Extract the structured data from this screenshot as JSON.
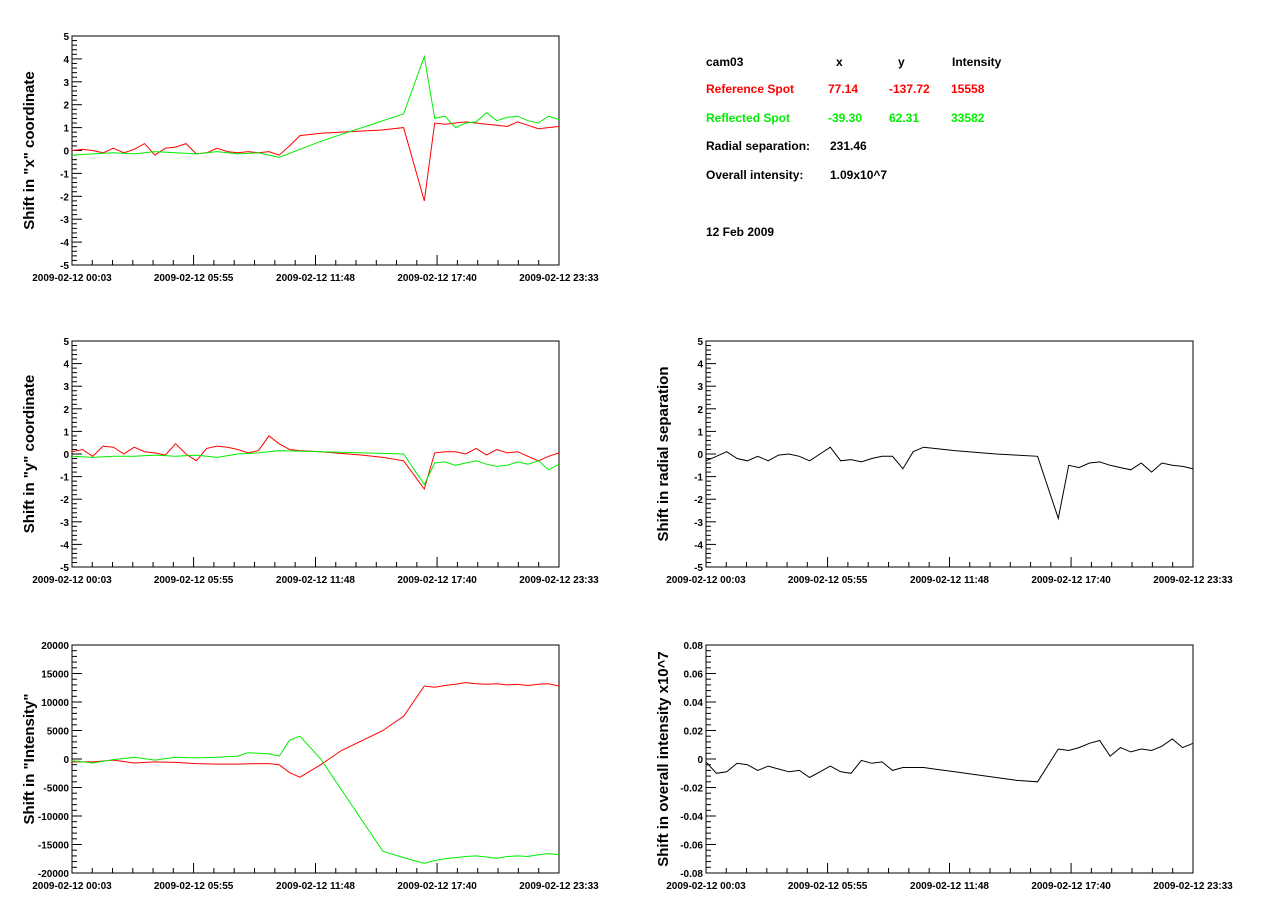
{
  "info": {
    "camera": "cam03",
    "col_x": "x",
    "col_y": "y",
    "col_intensity": "Intensity",
    "reference": {
      "label": "Reference Spot",
      "x": "77.14",
      "y": "-137.72",
      "intensity": "15558",
      "color": "#ff0000"
    },
    "reflected": {
      "label": "Reflected Spot",
      "x": "-39.30",
      "y": "62.31",
      "intensity": "33582",
      "color": "#00ee00"
    },
    "radial_label": "Radial separation:",
    "radial_value": "231.46",
    "overall_label": "Overall intensity:",
    "overall_value": "1.09x10^7",
    "date": "12 Feb 2009"
  },
  "chart_data": [
    {
      "id": "x-shift",
      "type": "line",
      "ylabel": "Shift in \"x\" coordinate",
      "ylim": [
        -5,
        5
      ],
      "yticks": [
        "-5",
        "-4",
        "-3",
        "-2",
        "-1",
        "0",
        "1",
        "2",
        "3",
        "4",
        "5"
      ],
      "xlim": [
        0,
        1410
      ],
      "xticks": [
        {
          "t": 0,
          "label": "2009-02-12 00:03"
        },
        {
          "t": 352,
          "label": "2009-02-12 05:55"
        },
        {
          "t": 705,
          "label": "2009-02-12 11:48"
        },
        {
          "t": 1057,
          "label": "2009-02-12 17:40"
        },
        {
          "t": 1410,
          "label": "2009-02-12 23:33"
        }
      ],
      "series": [
        {
          "color": "#ff0000",
          "x": [
            0,
            30,
            60,
            90,
            120,
            150,
            180,
            210,
            240,
            270,
            300,
            330,
            360,
            390,
            420,
            450,
            480,
            510,
            540,
            570,
            600,
            630,
            660,
            720,
            840,
            900,
            960,
            1020,
            1050,
            1080,
            1110,
            1140,
            1170,
            1200,
            1230,
            1260,
            1290,
            1320,
            1350,
            1380,
            1410
          ],
          "y": [
            0,
            0.05,
            0,
            -0.1,
            0.1,
            -0.1,
            0.05,
            0.3,
            -0.2,
            0.1,
            0.15,
            0.3,
            -0.15,
            -0.1,
            0.1,
            -0.05,
            -0.1,
            -0.05,
            -0.1,
            -0.05,
            -0.2,
            0.2,
            0.65,
            0.75,
            0.85,
            0.9,
            1.0,
            -2.2,
            1.2,
            1.15,
            1.2,
            1.25,
            1.2,
            1.15,
            1.1,
            1.05,
            1.25,
            1.1,
            0.95,
            1.0,
            1.05
          ]
        },
        {
          "color": "#00ee00",
          "x": [
            0,
            60,
            120,
            180,
            240,
            300,
            360,
            420,
            480,
            540,
            600,
            720,
            960,
            1020,
            1050,
            1080,
            1110,
            1140,
            1170,
            1200,
            1230,
            1260,
            1290,
            1320,
            1350,
            1380,
            1410
          ],
          "y": [
            -0.2,
            -0.15,
            -0.1,
            -0.15,
            -0.05,
            -0.1,
            -0.15,
            -0.05,
            -0.15,
            -0.1,
            -0.3,
            0.4,
            1.6,
            4.1,
            1.4,
            1.5,
            1.0,
            1.2,
            1.25,
            1.65,
            1.3,
            1.45,
            1.5,
            1.3,
            1.2,
            1.5,
            1.35
          ]
        }
      ]
    },
    {
      "id": "y-shift",
      "type": "line",
      "ylabel": "Shift in \"y\" coordinate",
      "ylim": [
        -5,
        5
      ],
      "yticks": [
        "-5",
        "-4",
        "-3",
        "-2",
        "-1",
        "0",
        "1",
        "2",
        "3",
        "4",
        "5"
      ],
      "xlim": [
        0,
        1410
      ],
      "xticks": [
        {
          "t": 0,
          "label": "2009-02-12 00:03"
        },
        {
          "t": 352,
          "label": "2009-02-12 05:55"
        },
        {
          "t": 705,
          "label": "2009-02-12 11:48"
        },
        {
          "t": 1057,
          "label": "2009-02-12 17:40"
        },
        {
          "t": 1410,
          "label": "2009-02-12 23:33"
        }
      ],
      "series": [
        {
          "color": "#ff0000",
          "x": [
            0,
            30,
            60,
            90,
            120,
            150,
            180,
            210,
            240,
            270,
            300,
            330,
            360,
            390,
            420,
            450,
            480,
            510,
            540,
            570,
            600,
            630,
            660,
            720,
            840,
            900,
            960,
            1020,
            1050,
            1080,
            1110,
            1140,
            1170,
            1200,
            1230,
            1260,
            1290,
            1320,
            1350,
            1380,
            1410
          ],
          "y": [
            0.1,
            0.2,
            -0.1,
            0.35,
            0.3,
            0.0,
            0.3,
            0.1,
            0.05,
            -0.05,
            0.45,
            0.0,
            -0.3,
            0.25,
            0.35,
            0.3,
            0.2,
            0.05,
            0.15,
            0.8,
            0.45,
            0.2,
            0.15,
            0.1,
            -0.05,
            -0.15,
            -0.3,
            -1.55,
            0.05,
            0.1,
            0.1,
            0.0,
            0.25,
            -0.05,
            0.2,
            0.05,
            0.1,
            -0.1,
            -0.3,
            -0.1,
            0.05
          ]
        },
        {
          "color": "#00ee00",
          "x": [
            0,
            60,
            120,
            180,
            240,
            300,
            360,
            420,
            480,
            540,
            600,
            720,
            960,
            1020,
            1050,
            1080,
            1110,
            1140,
            1170,
            1200,
            1230,
            1260,
            1290,
            1320,
            1350,
            1380,
            1410
          ],
          "y": [
            -0.1,
            -0.15,
            -0.1,
            -0.1,
            -0.05,
            -0.1,
            -0.05,
            -0.15,
            0.0,
            0.05,
            0.15,
            0.1,
            0.0,
            -1.35,
            -0.4,
            -0.35,
            -0.5,
            -0.4,
            -0.3,
            -0.45,
            -0.55,
            -0.5,
            -0.35,
            -0.45,
            -0.3,
            -0.7,
            -0.45
          ]
        }
      ]
    },
    {
      "id": "intensity-shift",
      "type": "line",
      "ylabel": "Shift in \"Intensity\"",
      "ylim": [
        -20000,
        20000
      ],
      "yticks": [
        "-20000",
        "-15000",
        "-10000",
        "-5000",
        "0",
        "5000",
        "10000",
        "15000",
        "20000"
      ],
      "xlim": [
        0,
        1410
      ],
      "xticks": [
        {
          "t": 0,
          "label": "2009-02-12 00:03"
        },
        {
          "t": 352,
          "label": "2009-02-12 05:55"
        },
        {
          "t": 705,
          "label": "2009-02-12 11:48"
        },
        {
          "t": 1057,
          "label": "2009-02-12 17:40"
        },
        {
          "t": 1410,
          "label": "2009-02-12 23:33"
        }
      ],
      "series": [
        {
          "color": "#ff0000",
          "x": [
            0,
            60,
            120,
            180,
            240,
            300,
            360,
            420,
            480,
            540,
            570,
            600,
            630,
            660,
            720,
            780,
            900,
            960,
            1020,
            1050,
            1080,
            1110,
            1140,
            1170,
            1200,
            1230,
            1260,
            1290,
            1320,
            1350,
            1380,
            1410
          ],
          "y": [
            -500,
            -500,
            -200,
            -700,
            -500,
            -600,
            -800,
            -900,
            -900,
            -800,
            -800,
            -1000,
            -2400,
            -3200,
            -1000,
            1500,
            5000,
            7500,
            12800,
            12600,
            12900,
            13100,
            13400,
            13200,
            13100,
            13200,
            13000,
            13100,
            12900,
            13100,
            13200,
            12800
          ]
        },
        {
          "color": "#00ee00",
          "x": [
            0,
            60,
            120,
            180,
            240,
            300,
            360,
            420,
            480,
            510,
            540,
            570,
            600,
            630,
            660,
            720,
            900,
            960,
            1020,
            1050,
            1080,
            1110,
            1140,
            1170,
            1200,
            1230,
            1260,
            1290,
            1320,
            1350,
            1380,
            1410
          ],
          "y": [
            -300,
            -700,
            -100,
            300,
            -200,
            300,
            200,
            300,
            500,
            1100,
            1000,
            900,
            500,
            3300,
            4000,
            0,
            -16200,
            -17300,
            -18300,
            -17800,
            -17500,
            -17300,
            -17100,
            -17000,
            -17200,
            -17400,
            -17100,
            -17000,
            -17100,
            -16800,
            -16600,
            -16800
          ]
        }
      ]
    },
    {
      "id": "radial-shift",
      "type": "line",
      "ylabel": "Shift in radial separation",
      "ylim": [
        -5,
        5
      ],
      "yticks": [
        "-5",
        "-4",
        "-3",
        "-2",
        "-1",
        "0",
        "1",
        "2",
        "3",
        "4",
        "5"
      ],
      "xlim": [
        0,
        1410
      ],
      "xticks": [
        {
          "t": 0,
          "label": "2009-02-12 00:03"
        },
        {
          "t": 352,
          "label": "2009-02-12 05:55"
        },
        {
          "t": 705,
          "label": "2009-02-12 11:48"
        },
        {
          "t": 1057,
          "label": "2009-02-12 17:40"
        },
        {
          "t": 1410,
          "label": "2009-02-12 23:33"
        }
      ],
      "series": [
        {
          "color": "#000000",
          "x": [
            0,
            30,
            60,
            90,
            120,
            150,
            180,
            210,
            240,
            270,
            300,
            330,
            360,
            390,
            420,
            450,
            480,
            510,
            540,
            570,
            600,
            630,
            660,
            720,
            840,
            900,
            960,
            1020,
            1050,
            1080,
            1110,
            1140,
            1170,
            1200,
            1230,
            1260,
            1290,
            1320,
            1350,
            1380,
            1410
          ],
          "y": [
            -0.3,
            -0.1,
            0.1,
            -0.2,
            -0.3,
            -0.1,
            -0.3,
            -0.05,
            0.0,
            -0.1,
            -0.3,
            0.0,
            0.3,
            -0.3,
            -0.25,
            -0.35,
            -0.2,
            -0.1,
            -0.1,
            -0.65,
            0.1,
            0.3,
            0.25,
            0.15,
            0.0,
            -0.05,
            -0.1,
            -2.85,
            -0.5,
            -0.6,
            -0.4,
            -0.35,
            -0.5,
            -0.6,
            -0.7,
            -0.4,
            -0.8,
            -0.4,
            -0.5,
            -0.55,
            -0.65
          ]
        }
      ]
    },
    {
      "id": "overall-intensity-shift",
      "type": "line",
      "ylabel": "Shift in overall intensity x10^7",
      "ylim": [
        -0.08,
        0.08
      ],
      "yticks": [
        "-0.08",
        "-0.06",
        "-0.04",
        "-0.02",
        "0",
        "0.02",
        "0.04",
        "0.06",
        "0.08"
      ],
      "xlim": [
        0,
        1410
      ],
      "xticks": [
        {
          "t": 0,
          "label": "2009-02-12 00:03"
        },
        {
          "t": 352,
          "label": "2009-02-12 05:55"
        },
        {
          "t": 705,
          "label": "2009-02-12 11:48"
        },
        {
          "t": 1057,
          "label": "2009-02-12 17:40"
        },
        {
          "t": 1410,
          "label": "2009-02-12 23:33"
        }
      ],
      "series": [
        {
          "color": "#000000",
          "x": [
            0,
            30,
            60,
            90,
            120,
            150,
            180,
            210,
            240,
            270,
            300,
            330,
            360,
            390,
            420,
            450,
            480,
            510,
            540,
            570,
            600,
            630,
            660,
            720,
            840,
            900,
            960,
            1020,
            1050,
            1080,
            1110,
            1140,
            1170,
            1200,
            1230,
            1260,
            1290,
            1320,
            1350,
            1380,
            1410
          ],
          "y": [
            -0.002,
            -0.01,
            -0.009,
            -0.003,
            -0.004,
            -0.008,
            -0.005,
            -0.007,
            -0.009,
            -0.008,
            -0.013,
            -0.009,
            -0.005,
            -0.009,
            -0.01,
            -0.001,
            -0.003,
            -0.002,
            -0.008,
            -0.006,
            -0.006,
            -0.006,
            -0.007,
            -0.009,
            -0.013,
            -0.015,
            -0.016,
            0.007,
            0.006,
            0.008,
            0.011,
            0.013,
            0.002,
            0.008,
            0.005,
            0.007,
            0.006,
            0.009,
            0.014,
            0.008,
            0.011
          ]
        }
      ]
    }
  ]
}
